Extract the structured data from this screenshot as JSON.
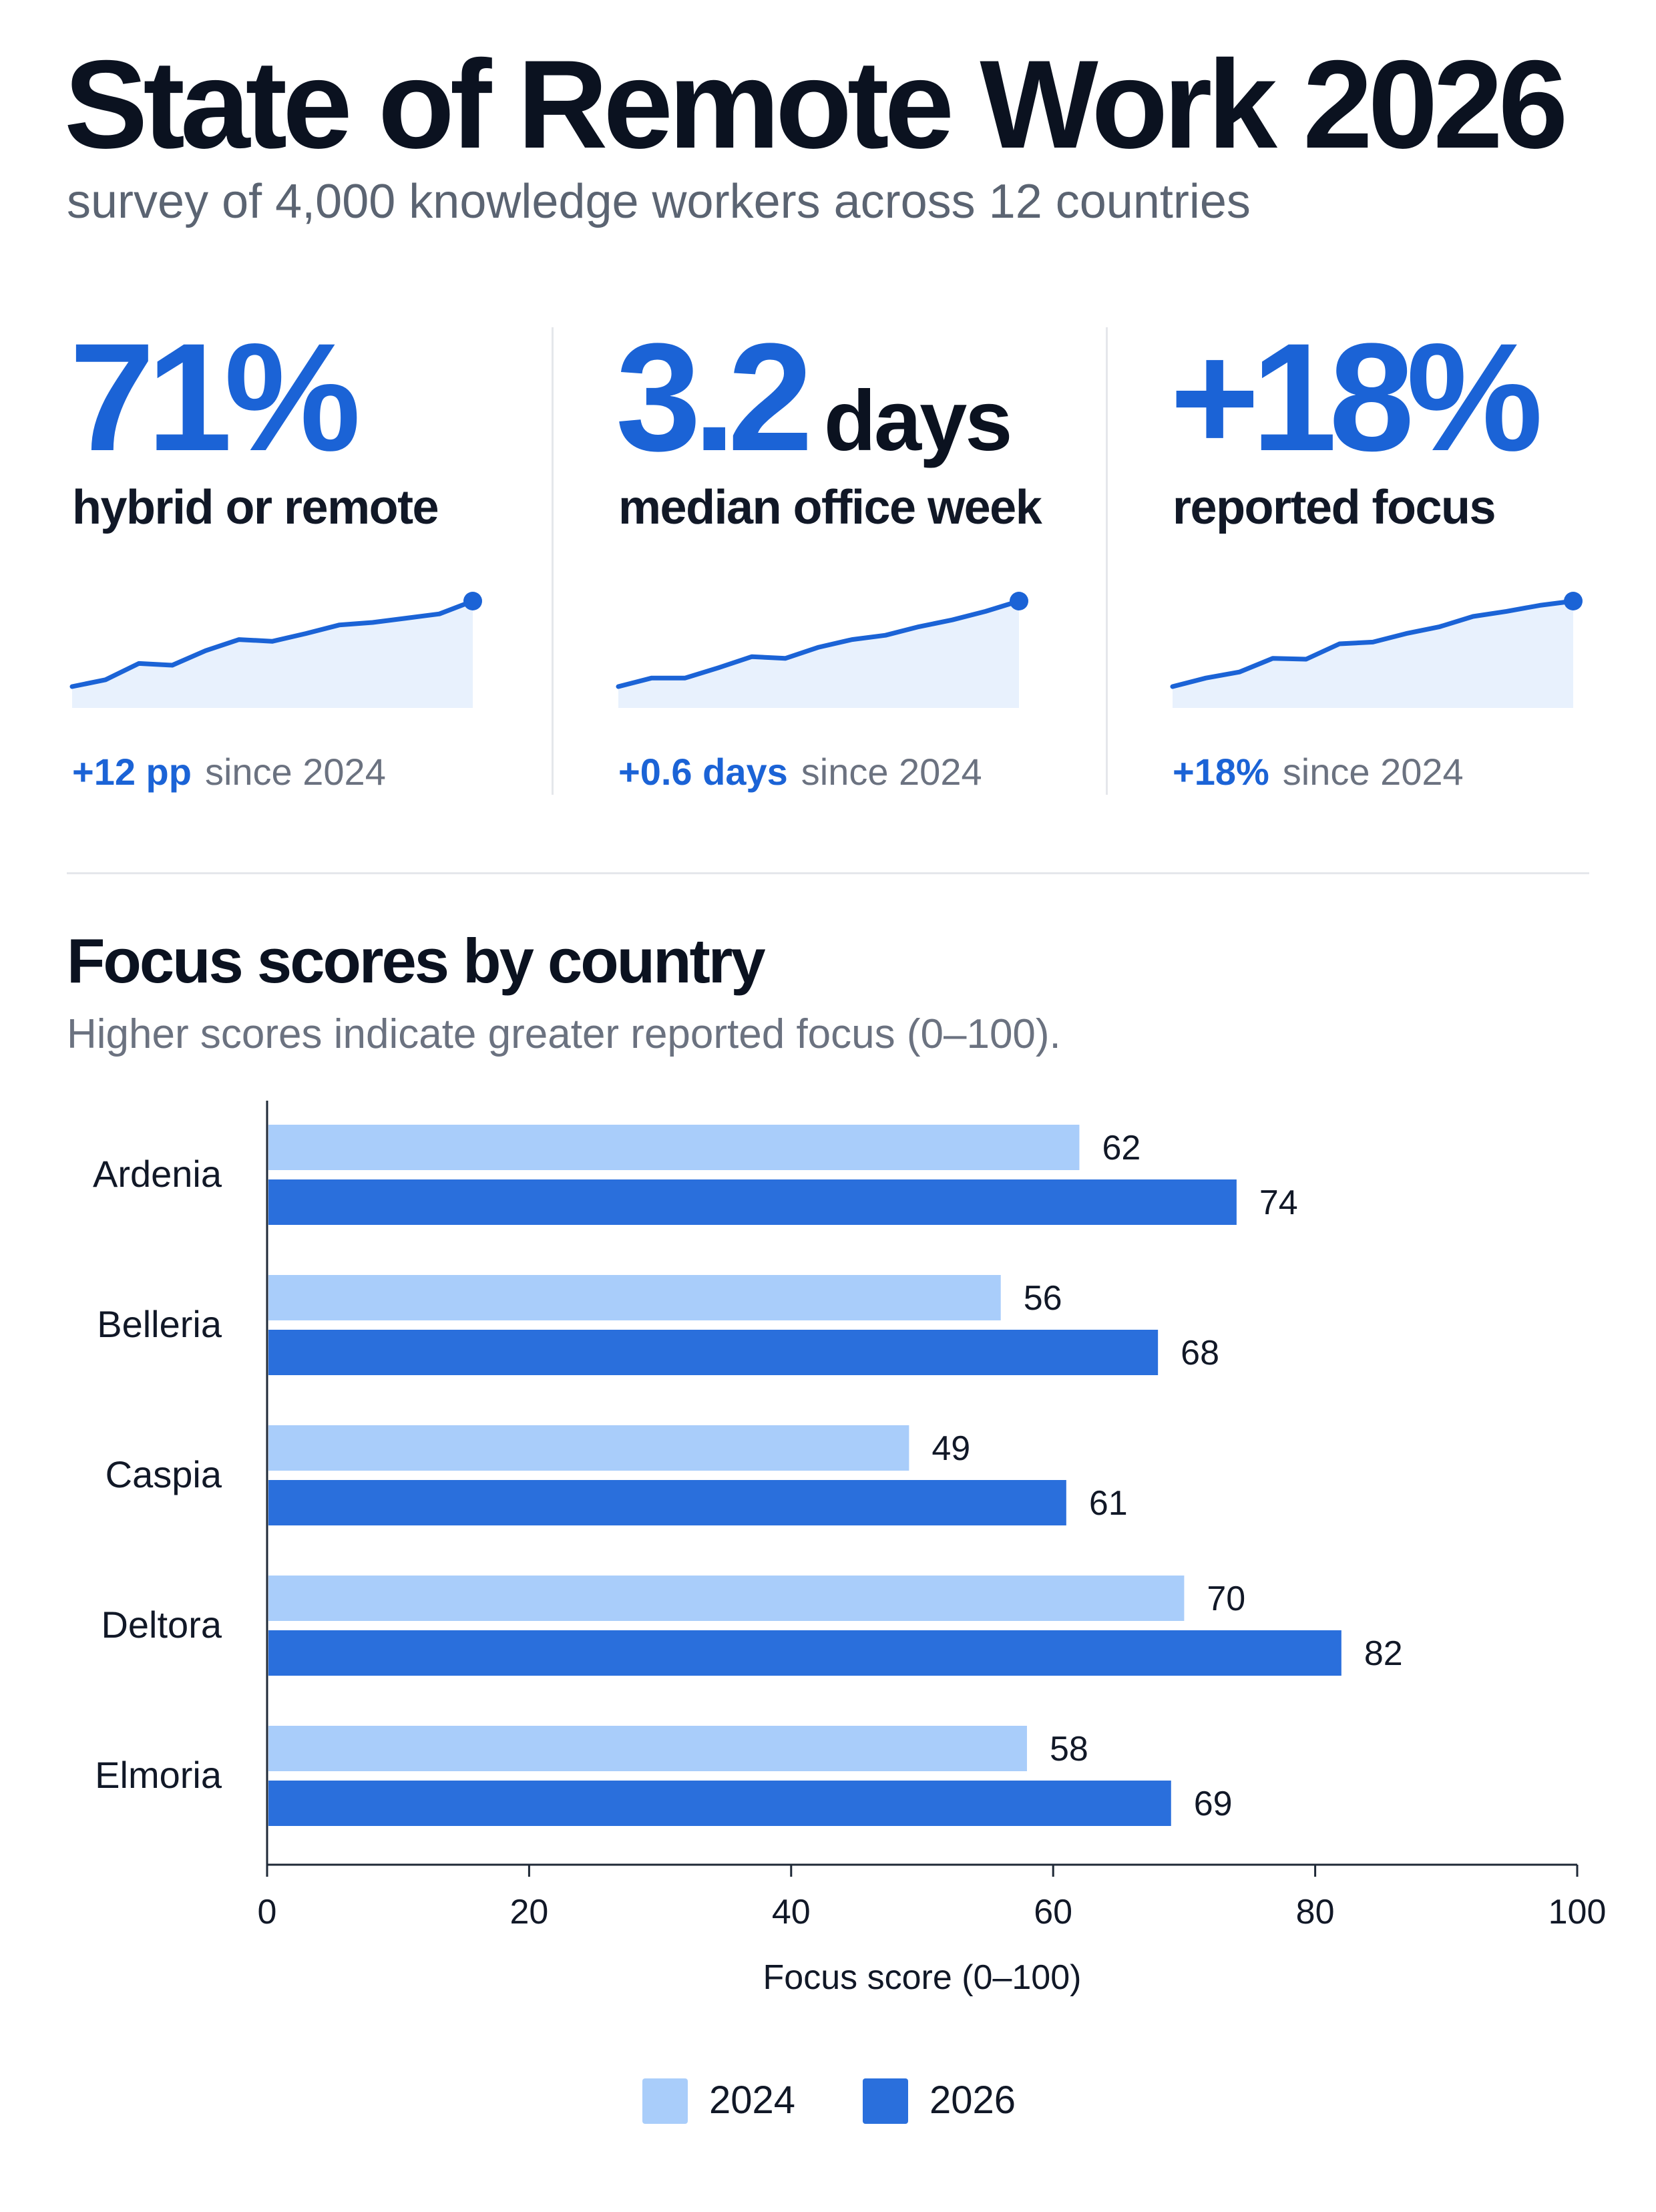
{
  "header": {
    "title": "State of Remote Work 2026",
    "subtitle": "survey of 4,000 knowledge workers across 12 countries"
  },
  "kpis": [
    {
      "value": "71%",
      "unit": "",
      "label": "hybrid or remote",
      "delta": "+12 pp",
      "since": "since 2024",
      "trend": [
        0.0,
        0.08,
        0.27,
        0.25,
        0.42,
        0.55,
        0.53,
        0.62,
        0.72,
        0.75,
        0.8,
        0.85,
        1.0
      ]
    },
    {
      "value": "3.2",
      "unit": "days",
      "label": "median office week",
      "delta": "+0.6 days",
      "since": "since 2024",
      "trend": [
        0.0,
        0.1,
        0.1,
        0.22,
        0.35,
        0.33,
        0.46,
        0.55,
        0.6,
        0.7,
        0.78,
        0.88,
        1.0
      ]
    },
    {
      "value": "+18%",
      "unit": "",
      "label": "reported focus",
      "delta": "+18%",
      "since": "since 2024",
      "trend": [
        0.0,
        0.1,
        0.17,
        0.33,
        0.32,
        0.5,
        0.52,
        0.62,
        0.7,
        0.82,
        0.88,
        0.95,
        1.0
      ]
    }
  ],
  "chart_data": {
    "type": "bar",
    "orientation": "horizontal",
    "title": "Focus scores by country",
    "subtitle": "Higher scores indicate greater reported focus (0–100).",
    "categories": [
      "Ardenia",
      "Belleria",
      "Caspia",
      "Deltora",
      "Elmoria"
    ],
    "series": [
      {
        "name": "2024",
        "color": "#a9cdfa",
        "values": [
          62,
          56,
          49,
          70,
          58
        ]
      },
      {
        "name": "2026",
        "color": "#2a6fdc",
        "values": [
          74,
          68,
          61,
          82,
          69
        ]
      }
    ],
    "xlabel": "Focus score (0–100)",
    "ylabel": "",
    "xlim": [
      0,
      100
    ],
    "xticks": [
      0,
      20,
      40,
      60,
      80,
      100
    ],
    "grid": false,
    "data_labels": true,
    "legend": "bottom-center"
  },
  "colors": {
    "accent": "#1b63d6",
    "light": "#a9cdfa",
    "dark": "#2a6fdc"
  }
}
